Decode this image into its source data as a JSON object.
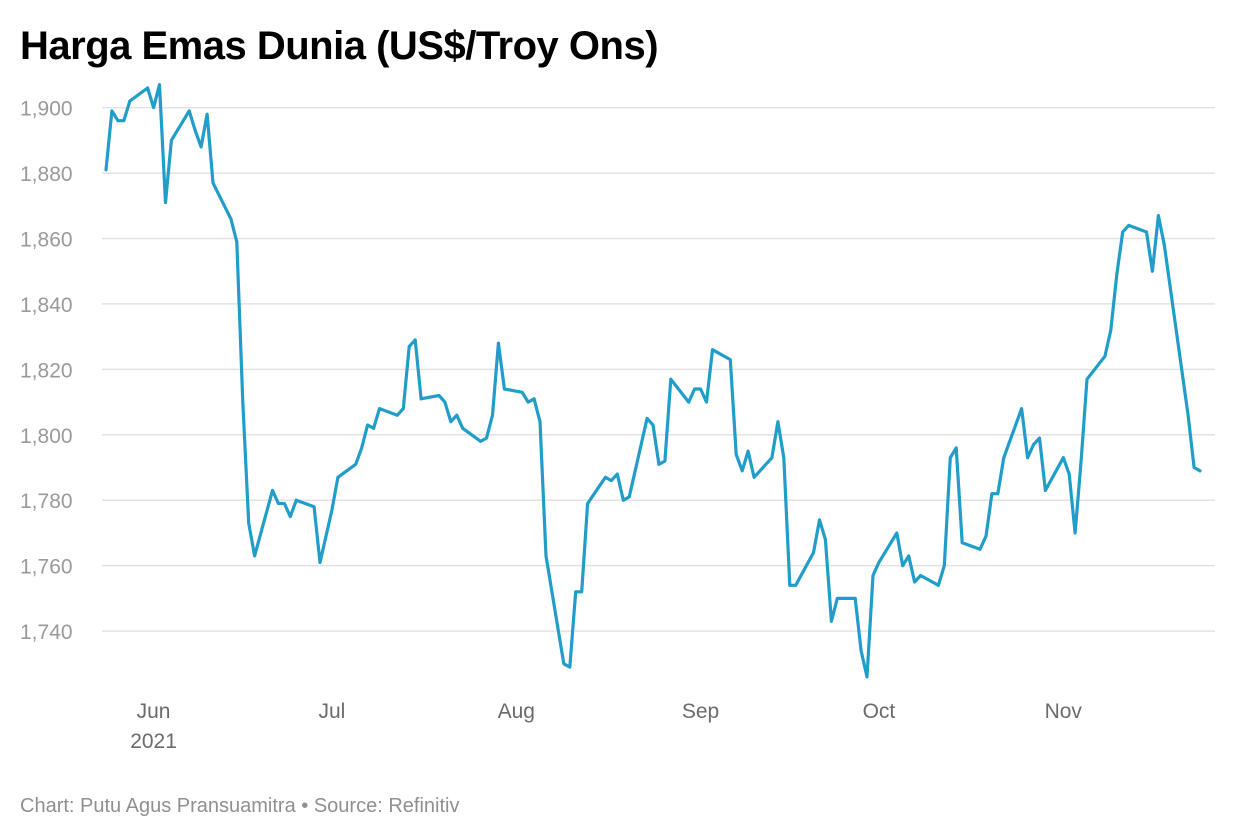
{
  "title": "Harga Emas Dunia (US$/Troy Ons)",
  "footer": {
    "credit": "Chart: Putu Agus Pransuamitra",
    "separator": "•",
    "source": "Source: Refinitiv"
  },
  "colors": {
    "line": "#209dc9",
    "grid": "#e2e2e2",
    "tick_text": "#9a9a9a"
  },
  "chart_data": {
    "type": "line",
    "title": "Harga Emas Dunia (US$/Troy Ons)",
    "xlabel": "",
    "ylabel": "",
    "xlim": [
      "2021-05-24",
      "2021-11-24"
    ],
    "ylim": [
      1722,
      1906
    ],
    "grid": true,
    "y_ticks": [
      1740,
      1760,
      1780,
      1800,
      1820,
      1840,
      1860,
      1880,
      1900
    ],
    "x_ticks": [
      {
        "date": "2021-06-01",
        "label": "Jun",
        "sublabel": "2021"
      },
      {
        "date": "2021-07-01",
        "label": "Jul",
        "sublabel": ""
      },
      {
        "date": "2021-08-01",
        "label": "Aug",
        "sublabel": ""
      },
      {
        "date": "2021-09-01",
        "label": "Sep",
        "sublabel": ""
      },
      {
        "date": "2021-10-01",
        "label": "Oct",
        "sublabel": ""
      },
      {
        "date": "2021-11-01",
        "label": "Nov",
        "sublabel": ""
      }
    ],
    "series": [
      {
        "name": "",
        "points": [
          [
            "2021-05-24",
            1881
          ],
          [
            "2021-05-25",
            1899
          ],
          [
            "2021-05-26",
            1896
          ],
          [
            "2021-05-27",
            1896
          ],
          [
            "2021-05-28",
            1902
          ],
          [
            "2021-05-31",
            1906
          ],
          [
            "2021-06-01",
            1900
          ],
          [
            "2021-06-02",
            1907
          ],
          [
            "2021-06-03",
            1871
          ],
          [
            "2021-06-04",
            1890
          ],
          [
            "2021-06-07",
            1899
          ],
          [
            "2021-06-08",
            1893
          ],
          [
            "2021-06-09",
            1888
          ],
          [
            "2021-06-10",
            1898
          ],
          [
            "2021-06-11",
            1877
          ],
          [
            "2021-06-14",
            1866
          ],
          [
            "2021-06-15",
            1859
          ],
          [
            "2021-06-16",
            1810
          ],
          [
            "2021-06-17",
            1773
          ],
          [
            "2021-06-18",
            1763
          ],
          [
            "2021-06-21",
            1783
          ],
          [
            "2021-06-22",
            1779
          ],
          [
            "2021-06-23",
            1779
          ],
          [
            "2021-06-24",
            1775
          ],
          [
            "2021-06-25",
            1780
          ],
          [
            "2021-06-28",
            1778
          ],
          [
            "2021-06-29",
            1761
          ],
          [
            "2021-06-30",
            1769
          ],
          [
            "2021-07-01",
            1777
          ],
          [
            "2021-07-02",
            1787
          ],
          [
            "2021-07-05",
            1791
          ],
          [
            "2021-07-06",
            1796
          ],
          [
            "2021-07-07",
            1803
          ],
          [
            "2021-07-08",
            1802
          ],
          [
            "2021-07-09",
            1808
          ],
          [
            "2021-07-12",
            1806
          ],
          [
            "2021-07-13",
            1808
          ],
          [
            "2021-07-14",
            1827
          ],
          [
            "2021-07-15",
            1829
          ],
          [
            "2021-07-16",
            1811
          ],
          [
            "2021-07-19",
            1812
          ],
          [
            "2021-07-20",
            1810
          ],
          [
            "2021-07-21",
            1804
          ],
          [
            "2021-07-22",
            1806
          ],
          [
            "2021-07-23",
            1802
          ],
          [
            "2021-07-26",
            1798
          ],
          [
            "2021-07-27",
            1799
          ],
          [
            "2021-07-28",
            1806
          ],
          [
            "2021-07-29",
            1828
          ],
          [
            "2021-07-30",
            1814
          ],
          [
            "2021-08-02",
            1813
          ],
          [
            "2021-08-03",
            1810
          ],
          [
            "2021-08-04",
            1811
          ],
          [
            "2021-08-05",
            1804
          ],
          [
            "2021-08-06",
            1763
          ],
          [
            "2021-08-09",
            1730
          ],
          [
            "2021-08-10",
            1729
          ],
          [
            "2021-08-11",
            1752
          ],
          [
            "2021-08-12",
            1752
          ],
          [
            "2021-08-13",
            1779
          ],
          [
            "2021-08-16",
            1787
          ],
          [
            "2021-08-17",
            1786
          ],
          [
            "2021-08-18",
            1788
          ],
          [
            "2021-08-19",
            1780
          ],
          [
            "2021-08-20",
            1781
          ],
          [
            "2021-08-23",
            1805
          ],
          [
            "2021-08-24",
            1803
          ],
          [
            "2021-08-25",
            1791
          ],
          [
            "2021-08-26",
            1792
          ],
          [
            "2021-08-27",
            1817
          ],
          [
            "2021-08-30",
            1810
          ],
          [
            "2021-08-31",
            1814
          ],
          [
            "2021-09-01",
            1814
          ],
          [
            "2021-09-02",
            1810
          ],
          [
            "2021-09-03",
            1826
          ],
          [
            "2021-09-06",
            1823
          ],
          [
            "2021-09-07",
            1794
          ],
          [
            "2021-09-08",
            1789
          ],
          [
            "2021-09-09",
            1795
          ],
          [
            "2021-09-10",
            1787
          ],
          [
            "2021-09-13",
            1793
          ],
          [
            "2021-09-14",
            1804
          ],
          [
            "2021-09-15",
            1793
          ],
          [
            "2021-09-16",
            1754
          ],
          [
            "2021-09-17",
            1754
          ],
          [
            "2021-09-20",
            1764
          ],
          [
            "2021-09-21",
            1774
          ],
          [
            "2021-09-22",
            1768
          ],
          [
            "2021-09-23",
            1743
          ],
          [
            "2021-09-24",
            1750
          ],
          [
            "2021-09-27",
            1750
          ],
          [
            "2021-09-28",
            1734
          ],
          [
            "2021-09-29",
            1726
          ],
          [
            "2021-09-30",
            1757
          ],
          [
            "2021-10-01",
            1761
          ],
          [
            "2021-10-04",
            1770
          ],
          [
            "2021-10-05",
            1760
          ],
          [
            "2021-10-06",
            1763
          ],
          [
            "2021-10-07",
            1755
          ],
          [
            "2021-10-08",
            1757
          ],
          [
            "2021-10-11",
            1754
          ],
          [
            "2021-10-12",
            1760
          ],
          [
            "2021-10-13",
            1793
          ],
          [
            "2021-10-14",
            1796
          ],
          [
            "2021-10-15",
            1767
          ],
          [
            "2021-10-18",
            1765
          ],
          [
            "2021-10-19",
            1769
          ],
          [
            "2021-10-20",
            1782
          ],
          [
            "2021-10-21",
            1782
          ],
          [
            "2021-10-22",
            1793
          ],
          [
            "2021-10-25",
            1808
          ],
          [
            "2021-10-26",
            1793
          ],
          [
            "2021-10-27",
            1797
          ],
          [
            "2021-10-28",
            1799
          ],
          [
            "2021-10-29",
            1783
          ],
          [
            "2021-11-01",
            1793
          ],
          [
            "2021-11-02",
            1788
          ],
          [
            "2021-11-03",
            1770
          ],
          [
            "2021-11-04",
            1792
          ],
          [
            "2021-11-05",
            1817
          ],
          [
            "2021-11-08",
            1824
          ],
          [
            "2021-11-09",
            1832
          ],
          [
            "2021-11-10",
            1849
          ],
          [
            "2021-11-11",
            1862
          ],
          [
            "2021-11-12",
            1864
          ],
          [
            "2021-11-15",
            1862
          ],
          [
            "2021-11-16",
            1850
          ],
          [
            "2021-11-17",
            1867
          ],
          [
            "2021-11-18",
            1858
          ],
          [
            "2021-11-22",
            1806
          ],
          [
            "2021-11-23",
            1790
          ],
          [
            "2021-11-24",
            1789
          ]
        ]
      }
    ]
  }
}
